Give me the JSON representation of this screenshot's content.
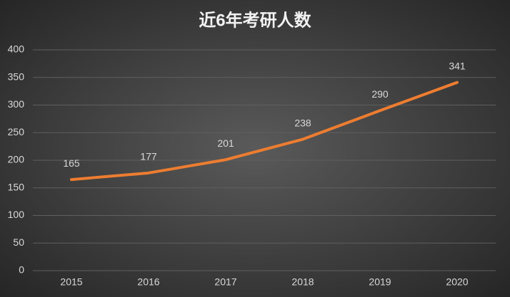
{
  "chart_data": {
    "type": "line",
    "title": "近6年考研人数",
    "categories": [
      "2015",
      "2016",
      "2017",
      "2018",
      "2019",
      "2020"
    ],
    "values": [
      165,
      177,
      201,
      238,
      290,
      341
    ],
    "color": "#ed7d31",
    "ylim": [
      0,
      400
    ],
    "yticks": [
      0,
      50,
      100,
      150,
      200,
      250,
      300,
      350,
      400
    ],
    "grid": true
  }
}
